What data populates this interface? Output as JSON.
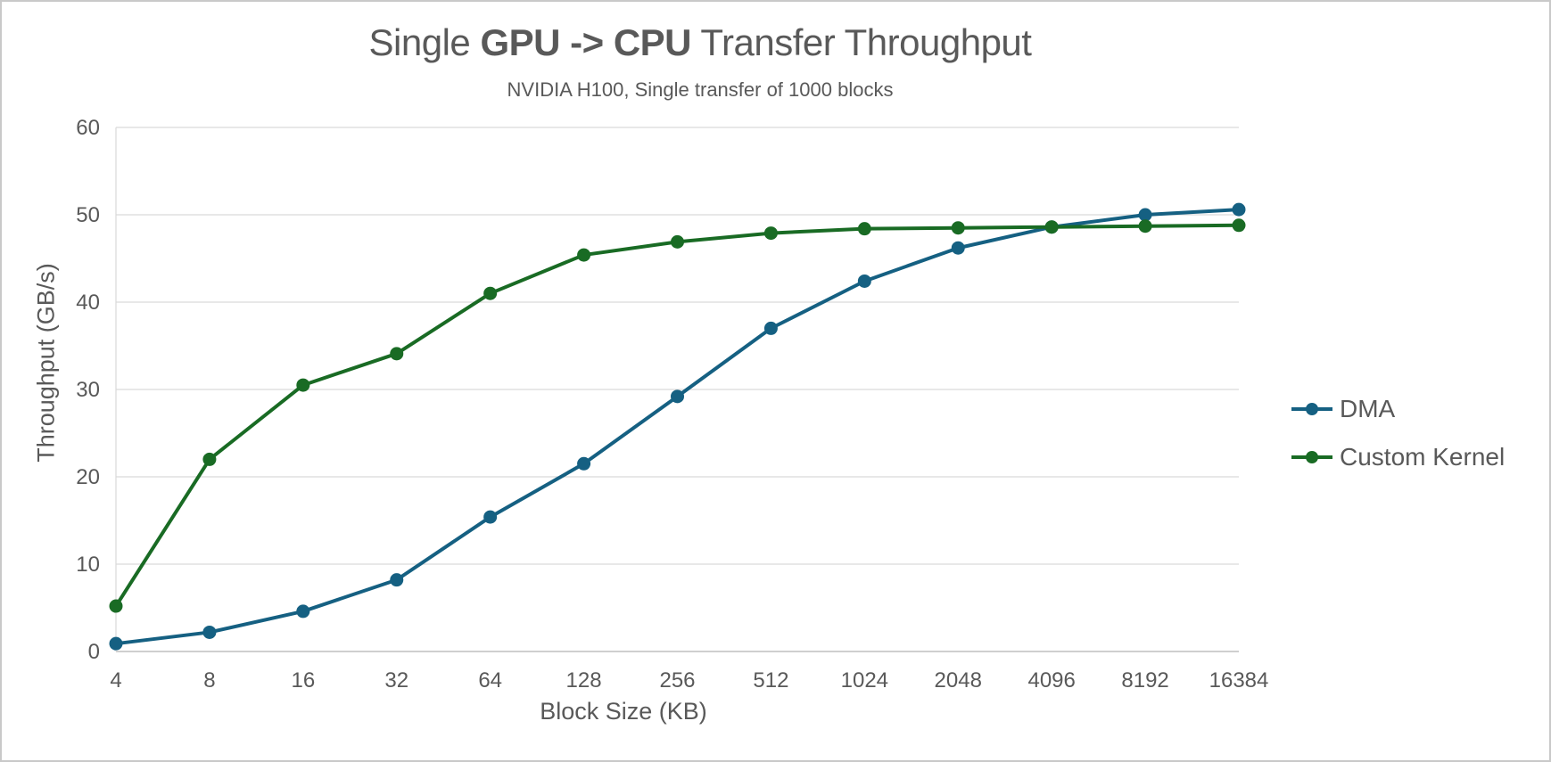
{
  "window": {
    "background": "#ffffff",
    "border_color": "#c9c9c9"
  },
  "chart_data": {
    "type": "line",
    "title": "Single GPU -> CPU Transfer Throughput",
    "title_prefix": "Single ",
    "title_bold": "GPU -> CPU",
    "title_suffix": " Transfer Throughput",
    "subtitle": "NVIDIA H100, Single transfer of 1000 blocks",
    "xlabel": "Block Size (KB)",
    "ylabel": "Throughput (GB/s)",
    "categories": [
      "4",
      "8",
      "16",
      "32",
      "64",
      "128",
      "256",
      "512",
      "1024",
      "2048",
      "4096",
      "8192",
      "16384"
    ],
    "ylim": [
      0,
      60
    ],
    "ytick_step": 10,
    "yticks": [
      0,
      10,
      20,
      30,
      40,
      50,
      60
    ],
    "grid": true,
    "legend_position": "right",
    "series": [
      {
        "name": "DMA",
        "color": "#156082",
        "values": [
          0.9,
          2.2,
          4.6,
          8.2,
          15.4,
          21.5,
          29.2,
          37.0,
          42.4,
          46.2,
          48.6,
          50.0,
          50.6
        ]
      },
      {
        "name": "Custom Kernel",
        "color": "#196B24",
        "values": [
          5.2,
          22.0,
          30.5,
          34.1,
          41.0,
          45.4,
          46.9,
          47.9,
          48.4,
          48.5,
          48.6,
          48.7,
          48.8
        ]
      }
    ],
    "styles": {
      "text_color": "#595959",
      "gridline_color": "#D9D9D9",
      "axis_line_color": "#BFBFBF",
      "marker_radius": 7.5,
      "line_width": 4
    }
  }
}
